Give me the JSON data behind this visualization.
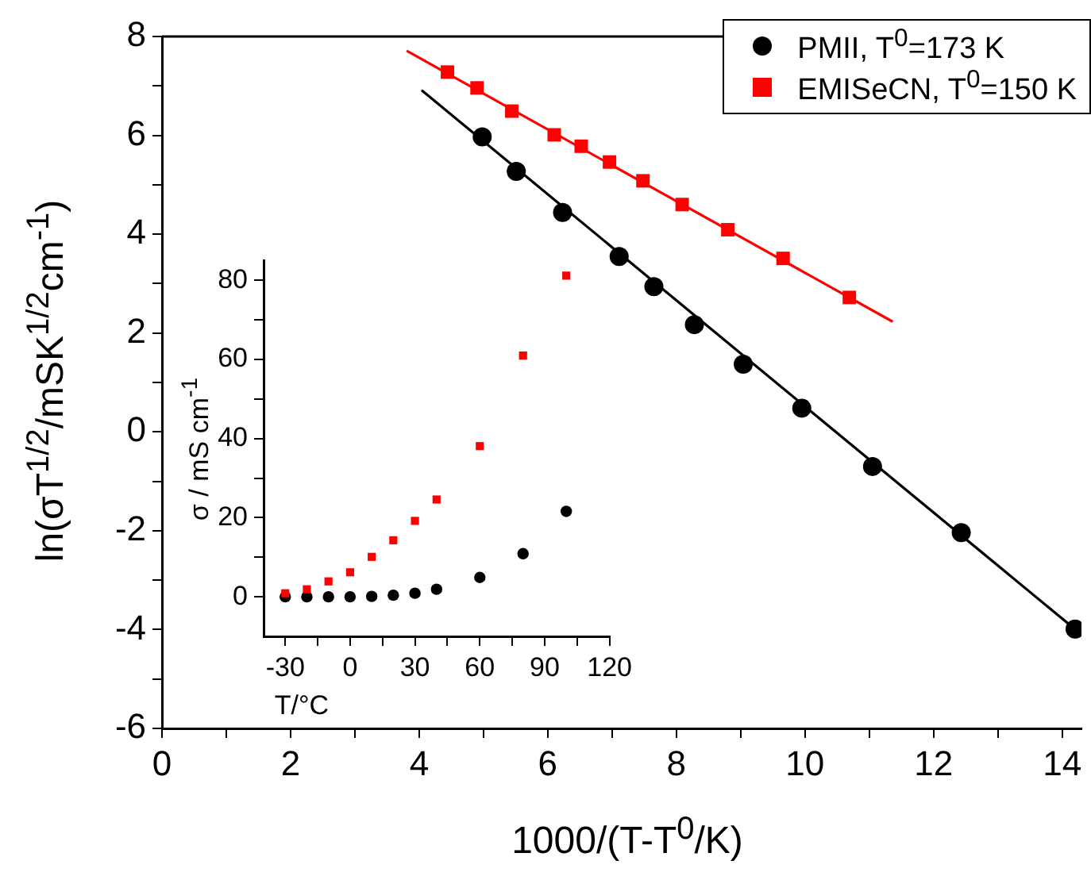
{
  "chart_data": [
    {
      "type": "scatter",
      "xlabel": "1000/(T-T$^{0}$/K)",
      "ylabel": "ln(σT$^{1/2}$/mSK$^{1/2}$cm$^{-1}$)",
      "xlim": [
        0,
        14.3
      ],
      "ylim": [
        -6,
        8
      ],
      "xticks": [
        0,
        {
          "value": 1,
          "label": null
        },
        2,
        {
          "value": 3,
          "label": null
        },
        4,
        {
          "value": 5,
          "label": null
        },
        6,
        {
          "value": 7,
          "label": null
        },
        8,
        {
          "value": 9,
          "label": null
        },
        10,
        {
          "value": 11,
          "label": null
        },
        12,
        {
          "value": 13,
          "label": null
        },
        14
      ],
      "yticks": [
        -6,
        {
          "value": -5,
          "label": null
        },
        -4,
        {
          "value": -3,
          "label": null
        },
        -2,
        {
          "value": -1,
          "label": null
        },
        0,
        {
          "value": 1,
          "label": null
        },
        2,
        {
          "value": 3,
          "label": null
        },
        4,
        {
          "value": 5,
          "label": null
        },
        6,
        {
          "value": 7,
          "label": null
        },
        8
      ],
      "legend": "top right",
      "series": [
        {
          "name": "PMII, T$^{0}$=173 K",
          "marker": "circle",
          "color": "#000000",
          "x": [
            4.98,
            5.51,
            6.23,
            7.11,
            7.65,
            8.28,
            9.04,
            9.95,
            11.05,
            12.43,
            14.2
          ],
          "values": [
            5.97,
            5.27,
            4.44,
            3.55,
            2.94,
            2.17,
            1.37,
            0.48,
            -0.7,
            -2.04,
            -3.99
          ]
        },
        {
          "name": "EMISeCN, T$^{0}$=150 K",
          "marker": "square",
          "color": "#ff0000",
          "x": [
            4.44,
            4.9,
            5.44,
            6.1,
            6.52,
            6.96,
            7.48,
            8.09,
            8.8,
            9.66,
            10.69
          ],
          "values": [
            7.28,
            6.96,
            6.49,
            6.01,
            5.78,
            5.46,
            5.08,
            4.6,
            4.09,
            3.51,
            2.72
          ]
        },
        {
          "type": "line",
          "marker": "none",
          "color": "#000000",
          "x": [
            4.05,
            14.3
          ],
          "values": [
            6.9,
            -4.1
          ]
        },
        {
          "type": "line",
          "marker": "none",
          "color": "#ff0000",
          "x": [
            3.82,
            11.35
          ],
          "values": [
            7.7,
            2.24
          ]
        }
      ]
    },
    {
      "type": "scatter",
      "xlabel": "T/°C",
      "ylabel": "σ / mS cm$^{-1}$",
      "xlim": [
        -40,
        120
      ],
      "ylim": [
        -10,
        85
      ],
      "xticks": [
        -30,
        {
          "value": -15,
          "label": null
        },
        0,
        {
          "value": 15,
          "label": null
        },
        30,
        {
          "value": 45,
          "label": null
        },
        60,
        {
          "value": 75,
          "label": null
        },
        90,
        {
          "value": 105,
          "label": null
        },
        120
      ],
      "yticks": [
        0,
        {
          "value": 10,
          "label": null
        },
        20,
        {
          "value": 30,
          "label": null
        },
        40,
        {
          "value": 50,
          "label": null
        },
        60,
        {
          "value": 70,
          "label": null
        },
        80
      ],
      "series": [
        {
          "marker": "circle",
          "color": "#000000",
          "x": [
            -30,
            -20,
            -10,
            0,
            10,
            20,
            30,
            40,
            60,
            80,
            100
          ],
          "values": [
            0,
            0,
            0,
            0,
            0.1,
            0.4,
            0.9,
            1.9,
            4.9,
            10.9,
            21.6
          ]
        },
        {
          "marker": "square",
          "color": "#ff0000",
          "x": [
            -30,
            -20,
            -10,
            0,
            10,
            20,
            30,
            40,
            60,
            80,
            100
          ],
          "values": [
            0.9,
            1.9,
            3.9,
            6.2,
            10.1,
            14.3,
            19.2,
            24.6,
            38.1,
            61,
            81.2
          ]
        }
      ]
    }
  ]
}
